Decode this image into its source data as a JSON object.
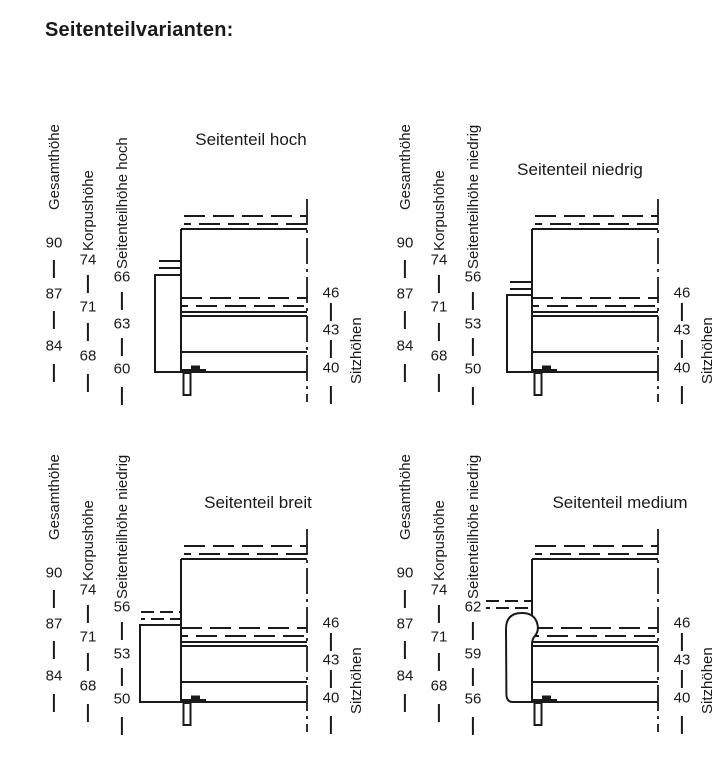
{
  "page": {
    "title": "Seitenteilvarianten:"
  },
  "colors": {
    "ink": "#1a1a1a",
    "background": "#ffffff"
  },
  "panels": [
    {
      "id": "hoch",
      "title": "Seitenteil hoch",
      "left_scales": [
        {
          "label": "Gesamthöhe",
          "values": [
            "90",
            "87",
            "84"
          ]
        },
        {
          "label": "Korpushöhe",
          "values": [
            "74",
            "71",
            "68"
          ]
        },
        {
          "label": "Seitenteilhöhe hoch",
          "values": [
            "66",
            "63",
            "60"
          ]
        }
      ],
      "right_scale": {
        "label": "Sitzhöhen",
        "values": [
          "46",
          "43",
          "40"
        ]
      }
    },
    {
      "id": "niedrig",
      "title": "Seitenteil niedrig",
      "left_scales": [
        {
          "label": "Gesamthöhe",
          "values": [
            "90",
            "87",
            "84"
          ]
        },
        {
          "label": "Korpushöhe",
          "values": [
            "74",
            "71",
            "68"
          ]
        },
        {
          "label": "Seitenteilhöhe niedrig",
          "values": [
            "56",
            "53",
            "50"
          ]
        }
      ],
      "right_scale": {
        "label": "Sitzhöhen",
        "values": [
          "46",
          "43",
          "40"
        ]
      }
    },
    {
      "id": "breit",
      "title": "Seitenteil breit",
      "left_scales": [
        {
          "label": "Gesamthöhe",
          "values": [
            "90",
            "87",
            "84"
          ]
        },
        {
          "label": "Korpushöhe",
          "values": [
            "74",
            "71",
            "68"
          ]
        },
        {
          "label": "Seitenteilhöhe niedrig",
          "values": [
            "56",
            "53",
            "50"
          ]
        }
      ],
      "right_scale": {
        "label": "Sitzhöhen",
        "values": [
          "46",
          "43",
          "40"
        ]
      }
    },
    {
      "id": "medium",
      "title": "Seitenteil medium",
      "left_scales": [
        {
          "label": "Gesamthöhe",
          "values": [
            "90",
            "87",
            "84"
          ]
        },
        {
          "label": "Korpushöhe",
          "values": [
            "74",
            "71",
            "68"
          ]
        },
        {
          "label": "Seitenteilhöhe niedrig",
          "values": [
            "62",
            "59",
            "56"
          ]
        }
      ],
      "right_scale": {
        "label": "Sitzhöhen",
        "values": [
          "46",
          "43",
          "40"
        ]
      }
    }
  ]
}
